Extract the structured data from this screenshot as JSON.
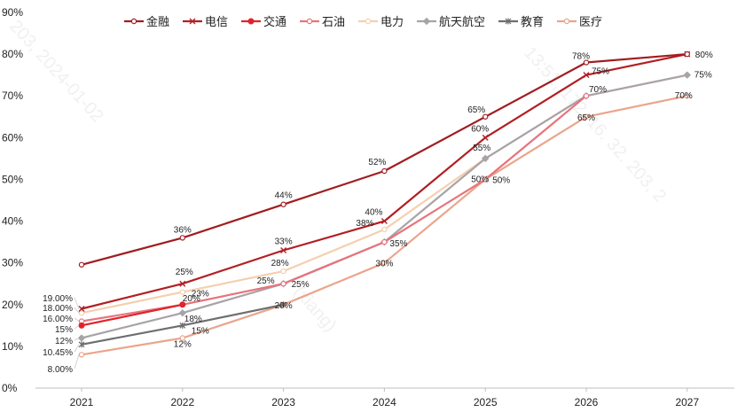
{
  "chart_data": {
    "type": "line",
    "title": "",
    "xlabel": "",
    "ylabel": "",
    "categories": [
      "2021",
      "2022",
      "2023",
      "2024",
      "2025",
      "2026",
      "2027"
    ],
    "y_ticks": [
      "0%",
      "10%",
      "20%",
      "30%",
      "40%",
      "50%",
      "60%",
      "70%",
      "80%",
      "90%"
    ],
    "ylim": [
      0,
      90
    ],
    "legend_position": "top",
    "grid": false,
    "series": [
      {
        "name": "金融",
        "color": "#a11d21",
        "marker": "circle-open",
        "values": [
          29.55,
          36,
          44,
          52,
          65,
          78,
          80
        ],
        "labels": [
          "29.55%",
          "36%",
          "44%",
          "52%",
          "65%",
          "78%",
          ""
        ]
      },
      {
        "name": "电信",
        "color": "#b21f24",
        "marker": "x",
        "values": [
          19,
          25,
          33,
          40,
          60,
          75,
          80
        ],
        "labels": [
          "19.00%",
          "25%",
          "33%",
          "40%",
          "60%",
          "75%",
          "80%"
        ]
      },
      {
        "name": "交通",
        "color": "#e0232b",
        "marker": "circle-filled",
        "values": [
          15,
          20,
          null,
          null,
          null,
          null,
          null
        ],
        "labels": [
          "15%",
          "20%",
          "",
          "",
          "",
          "",
          ""
        ]
      },
      {
        "name": "石油",
        "color": "#e8737b",
        "marker": "circle-open",
        "values": [
          16,
          20,
          25,
          35,
          50,
          70,
          null
        ],
        "labels": [
          "16.00%",
          "",
          "25%",
          "35%",
          "50%",
          "",
          ""
        ]
      },
      {
        "name": "电力",
        "color": "#f5cfae",
        "marker": "circle-open",
        "values": [
          18,
          23,
          28,
          38,
          55,
          70,
          75
        ],
        "labels": [
          "18.00%",
          "23%",
          "28%",
          "38%",
          "55%",
          "",
          ""
        ]
      },
      {
        "name": "航天航空",
        "color": "#a8a3a8",
        "marker": "diamond",
        "values": [
          12,
          18,
          25,
          35,
          55,
          70,
          75
        ],
        "labels": [
          "12%",
          "18%",
          "25%",
          "",
          "",
          "70%",
          "75%"
        ]
      },
      {
        "name": "教育",
        "color": "#6e6e6e",
        "marker": "star",
        "values": [
          10.45,
          15,
          20,
          null,
          null,
          null,
          null
        ],
        "labels": [
          "10.45%",
          "15%",
          "",
          "",
          "",
          "",
          ""
        ]
      },
      {
        "name": "医疗",
        "color": "#eaa58c",
        "marker": "circle-open",
        "values": [
          8,
          12,
          20,
          30,
          50,
          65,
          70
        ],
        "labels": [
          "8.00%",
          "12%",
          "20%",
          "30%",
          "50%",
          "65%",
          "70%"
        ]
      }
    ]
  },
  "watermarks": [
    "203, 2024-01-02",
    "13:51, 172. 16. 32. 203, 2",
    "(xiang)"
  ]
}
